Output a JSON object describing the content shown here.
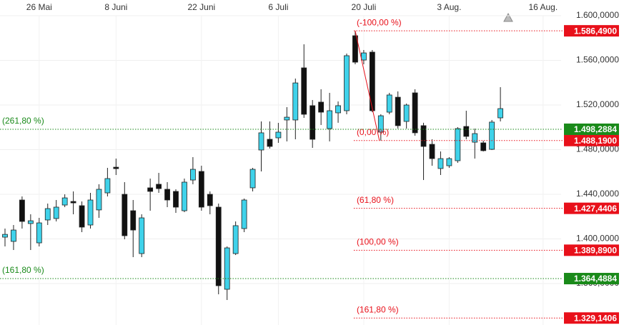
{
  "chart_data": {
    "type": "candlestick",
    "categories": [
      null,
      null,
      null,
      null,
      "26 Mai",
      null,
      null,
      null,
      null,
      null,
      null,
      null,
      null,
      "8 Juni",
      null,
      null,
      null,
      null,
      null,
      null,
      null,
      null,
      null,
      "22 Juni",
      null,
      null,
      null,
      null,
      null,
      null,
      null,
      null,
      "6 Juli",
      null,
      null,
      null,
      null,
      null,
      null,
      null,
      null,
      null,
      "20 Juli",
      null,
      null,
      null,
      null,
      null,
      null,
      null,
      null,
      null,
      "3 Aug.",
      null,
      null,
      null,
      null,
      null,
      null,
      null,
      null,
      null,
      null,
      "16 Aug."
    ],
    "open": [
      1.4016,
      1.3978,
      1.4349,
      1.4138,
      1.3965,
      1.417,
      1.4183,
      1.4304,
      1.4336,
      1.4298,
      1.4125,
      1.426,
      1.4413,
      1.4643,
      1.44,
      1.4253,
      1.3869,
      1.4458,
      1.449,
      1.4445,
      1.4426,
      1.4253,
      1.4528,
      1.4605,
      1.44,
      1.4285,
      1.3549,
      1.3869,
      1.4093,
      1.4458,
      1.4797,
      1.4893,
      1.4906,
      1.5066,
      1.5066,
      1.5533,
      1.5194,
      1.5226,
      1.4989,
      1.513,
      1.5149,
      1.5821,
      1.5603,
      1.5674,
      1.4957,
      1.5136,
      1.527,
      1.5053,
      1.5309,
      1.5015,
      1.4848,
      1.4631,
      1.4656,
      1.4701,
      1.5008,
      1.4867,
      1.4861,
      1.4803,
      1.5085,
      null,
      null,
      null,
      null,
      null
    ],
    "high": [
      1.4093,
      1.4125,
      1.4381,
      1.4221,
      1.4189,
      1.4317,
      1.4349,
      1.44,
      1.4426,
      1.4336,
      1.4413,
      1.449,
      1.4637,
      1.472,
      1.4509,
      1.4349,
      1.4221,
      1.4541,
      1.4592,
      1.4509,
      1.4445,
      1.4541,
      1.4733,
      1.4656,
      1.4426,
      1.4317,
      1.3933,
      1.4157,
      1.4362,
      1.4637,
      1.5053,
      1.5053,
      1.504,
      1.5181,
      1.5437,
      1.5744,
      1.5245,
      1.5341,
      1.5309,
      1.5232,
      1.5661,
      1.5865,
      1.5693,
      1.5693,
      1.5117,
      1.5309,
      1.5322,
      1.5213,
      1.5341,
      1.5041,
      1.4893,
      1.4784,
      1.4733,
      1.5002,
      1.5149,
      1.4989,
      1.488,
      1.5066,
      1.536,
      null,
      null,
      null,
      null,
      null
    ],
    "low": [
      1.3933,
      1.3901,
      1.4093,
      1.3901,
      1.3933,
      1.4125,
      1.4157,
      1.4285,
      1.4221,
      1.4061,
      1.4093,
      1.4189,
      1.4381,
      1.4573,
      1.3997,
      1.3837,
      1.3837,
      1.4253,
      1.4413,
      1.4285,
      1.4234,
      1.424,
      1.449,
      1.4253,
      1.4221,
      1.3504,
      1.3453,
      1.3856,
      1.4061,
      1.4426,
      1.4605,
      1.481,
      1.4861,
      1.4874,
      1.4893,
      1.5085,
      1.4816,
      1.5021,
      1.4874,
      1.5041,
      1.5117,
      1.5565,
      1.5565,
      1.5136,
      1.4882,
      1.5117,
      1.4989,
      1.4989,
      1.4925,
      1.4528,
      1.4656,
      1.4573,
      1.4637,
      1.4682,
      1.4893,
      1.472,
      1.4784,
      1.4797,
      1.5053,
      null,
      null,
      null,
      null,
      null
    ],
    "close": [
      1.4041,
      1.408,
      1.4157,
      1.4163,
      1.4144,
      1.4272,
      1.4285,
      1.4368,
      1.4323,
      1.4106,
      1.4349,
      1.4445,
      1.4541,
      1.463,
      1.4029,
      1.408,
      1.4189,
      1.4426,
      1.4451,
      1.4349,
      1.4285,
      1.4509,
      1.4624,
      1.4285,
      1.4298,
      1.3581,
      1.392,
      1.4119,
      1.4349,
      1.4624,
      1.4951,
      1.4829,
      1.4957,
      1.5091,
      1.5398,
      1.5117,
      1.4893,
      1.5136,
      1.5149,
      1.5194,
      1.5642,
      1.5584,
      1.5667,
      1.5149,
      1.5104,
      1.529,
      1.5015,
      1.52,
      1.4951,
      1.4829,
      1.472,
      1.472,
      1.472,
      1.4989,
      1.4919,
      1.4944,
      1.4791,
      1.5047,
      1.5168,
      null,
      null,
      null,
      null,
      null
    ],
    "up_color": "#3fd2ea",
    "down_color": "#111111",
    "ylim": [
      1.3229,
      1.6141
    ],
    "yticks": [
      {
        "value": 1.36,
        "label": "1.360,0000"
      },
      {
        "value": 1.4,
        "label": "1.400,0000"
      },
      {
        "value": 1.44,
        "label": "1.440,0000"
      },
      {
        "value": 1.48,
        "label": "1.480,0000"
      },
      {
        "value": 1.52,
        "label": "1.520,0000"
      },
      {
        "value": 1.56,
        "label": "1.560,0000"
      },
      {
        "value": 1.6,
        "label": "1.600,0000"
      }
    ],
    "grid": true,
    "levels": [
      {
        "name": "(-100,00 %)",
        "value": 1.58649,
        "value_label": "1.586,4900",
        "color": "#e8101a",
        "extend_left": false
      },
      {
        "name": "(0,00 %)",
        "value": 1.48819,
        "value_label": "1.488,1900",
        "color": "#e8101a",
        "extend_left": false
      },
      {
        "name": "(61,80 %)",
        "value": 1.427441,
        "value_label": "1.427,4406",
        "color": "#e8101a",
        "extend_left": false
      },
      {
        "name": "(100,00 %)",
        "value": 1.38989,
        "value_label": "1.389,8900",
        "color": "#e8101a",
        "extend_left": false
      },
      {
        "name": "(161,80 %)",
        "value": 1.329141,
        "value_label": "1.329,1406",
        "color": "#e8101a",
        "extend_left": false
      },
      {
        "name": "(261,80 %)",
        "value": 1.498288,
        "value_label": "1.498,2884",
        "color": "#1a8a1a",
        "extend_left": true
      },
      {
        "name": "(161,80 %)",
        "value": 1.364488,
        "value_label": "1.364,4884",
        "color": "#1a8a1a",
        "extend_left": true
      }
    ]
  }
}
